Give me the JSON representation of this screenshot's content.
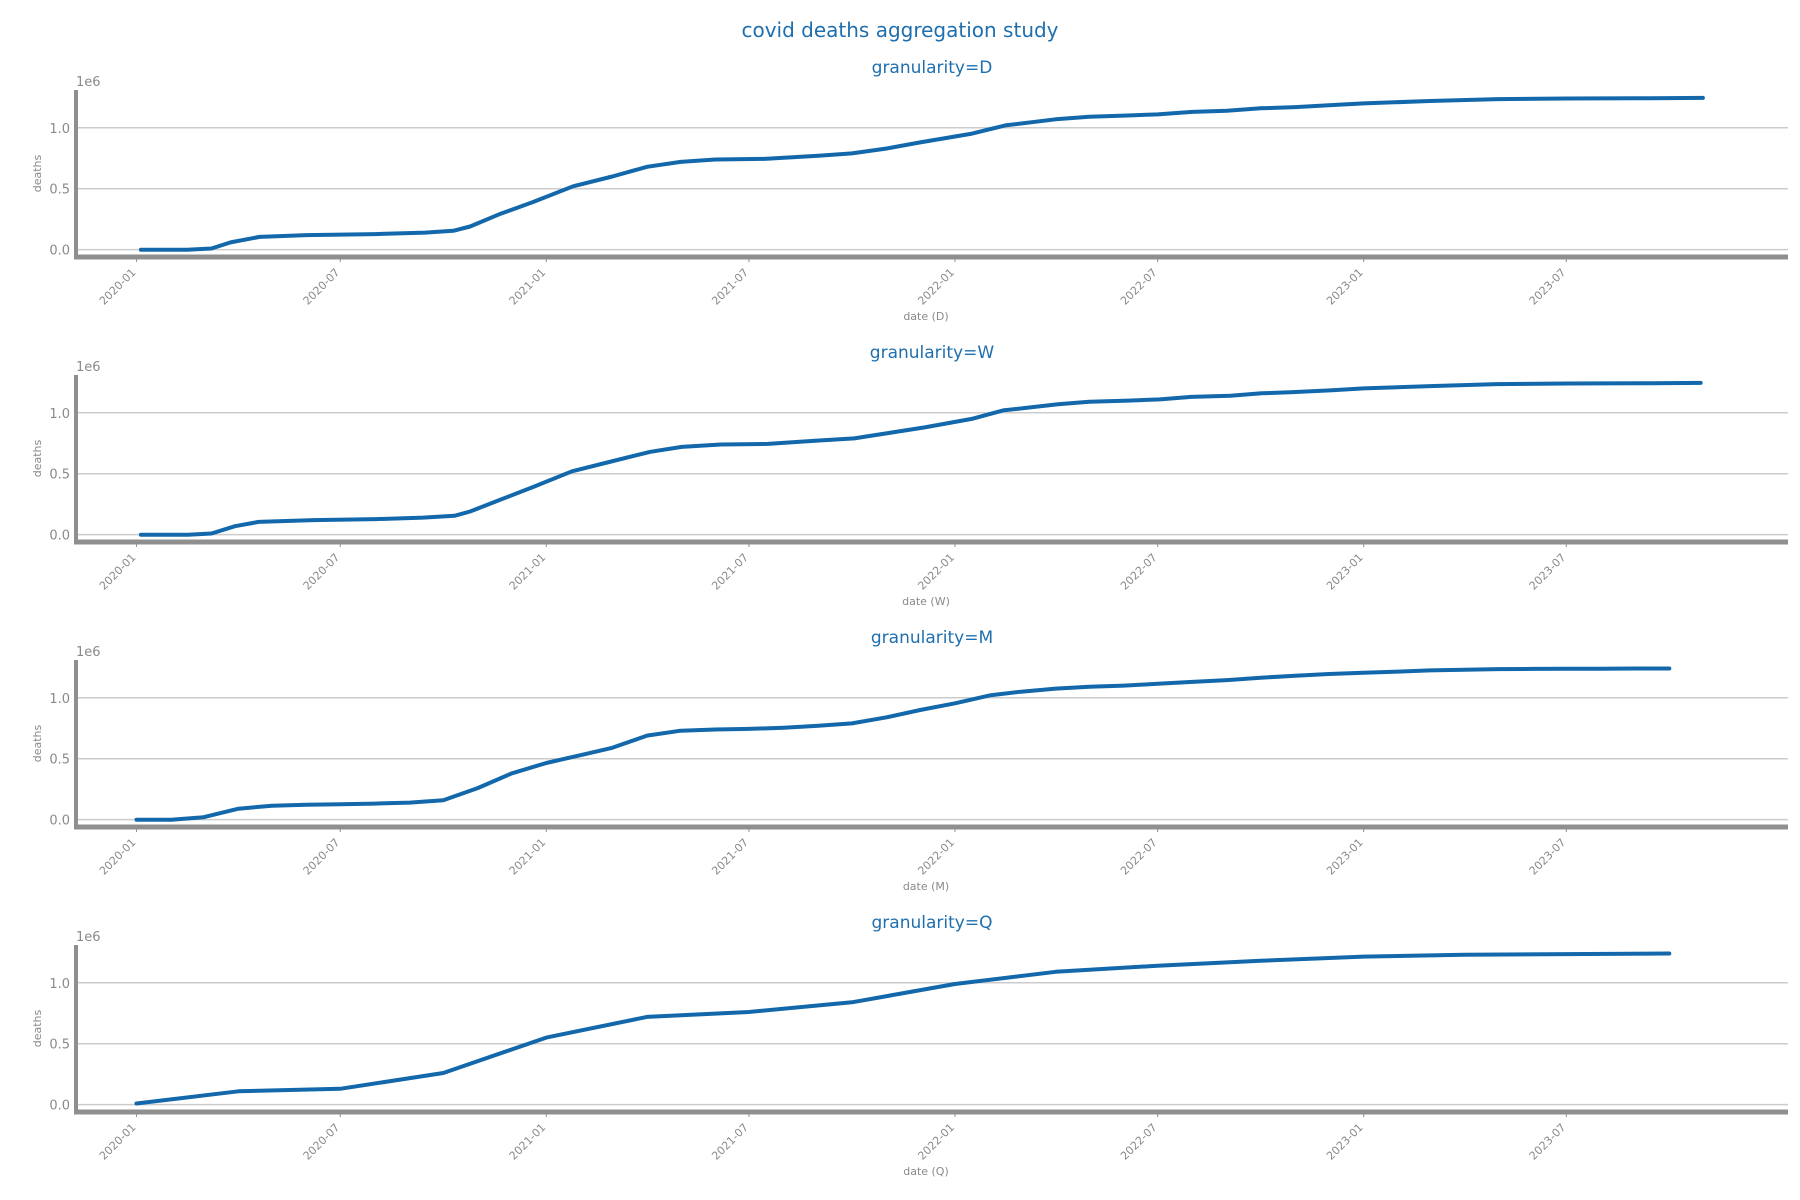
{
  "figure": {
    "title": "covid deaths aggregation study"
  },
  "chart_data": [
    {
      "type": "line",
      "title": "granularity=D",
      "xlabel": "date (D)",
      "ylabel": "deaths",
      "y_offset_label": "1e6",
      "ylim": [
        -0.06,
        1.31
      ],
      "xlim": [
        "2019-11-08",
        "2024-01-15"
      ],
      "grid": "horizontal",
      "yticks": [
        0.0,
        0.5,
        1.0
      ],
      "yticklabels": [
        "0.0",
        "0.5",
        "1.0"
      ],
      "xticks": [
        "2020-01-01",
        "2020-07-01",
        "2021-01-01",
        "2021-07-01",
        "2022-01-01",
        "2022-07-01",
        "2023-01-01",
        "2023-07-01"
      ],
      "xticklabels": [
        "2020-01",
        "2020-07",
        "2021-01",
        "2021-07",
        "2022-01",
        "2022-07",
        "2023-01",
        "2023-07"
      ],
      "color": "#1268aa",
      "series": [
        {
          "x": [
            "2020-01-05",
            "2020-02-15",
            "2020-03-08",
            "2020-03-25",
            "2020-04-20",
            "2020-06-01",
            "2020-08-01",
            "2020-09-15",
            "2020-10-10",
            "2020-10-25",
            "2020-11-20",
            "2020-12-20",
            "2021-01-25",
            "2021-03-01",
            "2021-04-01",
            "2021-05-01",
            "2021-06-01",
            "2021-07-15",
            "2021-09-01",
            "2021-10-01",
            "2021-11-01",
            "2021-12-01",
            "2022-01-15",
            "2022-02-15",
            "2022-04-01",
            "2022-05-01",
            "2022-06-01",
            "2022-07-01",
            "2022-08-01",
            "2022-09-01",
            "2022-10-01",
            "2022-11-01",
            "2022-12-01",
            "2023-01-01",
            "2023-03-01",
            "2023-05-01",
            "2023-07-01",
            "2023-09-01",
            "2023-10-31"
          ],
          "y": [
            0.0,
            0.0,
            0.01,
            0.06,
            0.105,
            0.12,
            0.128,
            0.14,
            0.155,
            0.19,
            0.29,
            0.39,
            0.52,
            0.6,
            0.68,
            0.72,
            0.74,
            0.745,
            0.77,
            0.79,
            0.83,
            0.88,
            0.95,
            1.02,
            1.07,
            1.09,
            1.1,
            1.11,
            1.13,
            1.14,
            1.16,
            1.17,
            1.185,
            1.2,
            1.22,
            1.235,
            1.24,
            1.242,
            1.245
          ]
        }
      ]
    },
    {
      "type": "line",
      "title": "granularity=W",
      "xlabel": "date (W)",
      "ylabel": "deaths",
      "y_offset_label": "1e6",
      "ylim": [
        -0.06,
        1.31
      ],
      "xlim": [
        "2019-11-08",
        "2024-01-15"
      ],
      "grid": "horizontal",
      "yticks": [
        0.0,
        0.5,
        1.0
      ],
      "yticklabels": [
        "0.0",
        "0.5",
        "1.0"
      ],
      "xticks": [
        "2020-01-01",
        "2020-07-01",
        "2021-01-01",
        "2021-07-01",
        "2022-01-01",
        "2022-07-01",
        "2023-01-01",
        "2023-07-01"
      ],
      "xticklabels": [
        "2020-01",
        "2020-07",
        "2021-01",
        "2021-07",
        "2022-01",
        "2022-07",
        "2023-01",
        "2023-07"
      ],
      "color": "#1268aa",
      "series": [
        {
          "x": [
            "2020-01-05",
            "2020-02-16",
            "2020-03-08",
            "2020-03-29",
            "2020-04-19",
            "2020-06-07",
            "2020-08-02",
            "2020-09-13",
            "2020-10-11",
            "2020-10-25",
            "2020-11-22",
            "2020-12-20",
            "2021-01-24",
            "2021-02-28",
            "2021-04-04",
            "2021-05-02",
            "2021-06-06",
            "2021-07-18",
            "2021-08-29",
            "2021-10-03",
            "2021-10-31",
            "2021-12-05",
            "2022-01-16",
            "2022-02-13",
            "2022-04-03",
            "2022-05-01",
            "2022-06-05",
            "2022-07-03",
            "2022-07-31",
            "2022-09-04",
            "2022-10-02",
            "2022-10-30",
            "2022-12-04",
            "2023-01-01",
            "2023-03-05",
            "2023-04-30",
            "2023-07-02",
            "2023-09-03",
            "2023-10-29"
          ],
          "y": [
            0.0,
            0.0,
            0.01,
            0.07,
            0.105,
            0.12,
            0.128,
            0.14,
            0.155,
            0.19,
            0.29,
            0.39,
            0.52,
            0.6,
            0.68,
            0.72,
            0.74,
            0.745,
            0.77,
            0.79,
            0.83,
            0.88,
            0.95,
            1.02,
            1.07,
            1.09,
            1.1,
            1.11,
            1.13,
            1.14,
            1.16,
            1.17,
            1.185,
            1.2,
            1.22,
            1.235,
            1.24,
            1.242,
            1.245
          ]
        }
      ]
    },
    {
      "type": "line",
      "title": "granularity=M",
      "xlabel": "date (M)",
      "ylabel": "deaths",
      "y_offset_label": "1e6",
      "ylim": [
        -0.06,
        1.31
      ],
      "xlim": [
        "2019-11-08",
        "2024-01-15"
      ],
      "grid": "horizontal",
      "yticks": [
        0.0,
        0.5,
        1.0
      ],
      "yticklabels": [
        "0.0",
        "0.5",
        "1.0"
      ],
      "xticks": [
        "2020-01-01",
        "2020-07-01",
        "2021-01-01",
        "2021-07-01",
        "2022-01-01",
        "2022-07-01",
        "2023-01-01",
        "2023-07-01"
      ],
      "xticklabels": [
        "2020-01",
        "2020-07",
        "2021-01",
        "2021-07",
        "2022-01",
        "2022-07",
        "2023-01",
        "2023-07"
      ],
      "color": "#1268aa",
      "series": [
        {
          "x": [
            "2020-01-01",
            "2020-02-01",
            "2020-03-01",
            "2020-04-01",
            "2020-05-01",
            "2020-06-01",
            "2020-07-01",
            "2020-08-01",
            "2020-09-01",
            "2020-10-01",
            "2020-11-01",
            "2020-12-01",
            "2021-01-01",
            "2021-02-01",
            "2021-03-01",
            "2021-04-01",
            "2021-05-01",
            "2021-06-01",
            "2021-07-01",
            "2021-08-01",
            "2021-09-01",
            "2021-10-01",
            "2021-11-01",
            "2021-12-01",
            "2022-01-01",
            "2022-02-01",
            "2022-03-01",
            "2022-04-01",
            "2022-05-01",
            "2022-06-01",
            "2022-07-01",
            "2022-08-01",
            "2022-09-01",
            "2022-10-01",
            "2022-11-01",
            "2022-12-01",
            "2023-01-01",
            "2023-02-01",
            "2023-03-01",
            "2023-04-01",
            "2023-05-01",
            "2023-06-01",
            "2023-07-01",
            "2023-08-01",
            "2023-09-01",
            "2023-10-01"
          ],
          "y": [
            0.0,
            0.0,
            0.02,
            0.09,
            0.115,
            0.122,
            0.127,
            0.132,
            0.14,
            0.16,
            0.26,
            0.38,
            0.465,
            0.53,
            0.59,
            0.69,
            0.73,
            0.74,
            0.745,
            0.755,
            0.77,
            0.79,
            0.84,
            0.9,
            0.955,
            1.02,
            1.05,
            1.075,
            1.09,
            1.1,
            1.115,
            1.13,
            1.145,
            1.165,
            1.18,
            1.195,
            1.205,
            1.215,
            1.225,
            1.23,
            1.235,
            1.237,
            1.238,
            1.239,
            1.24,
            1.24
          ]
        }
      ]
    },
    {
      "type": "line",
      "title": "granularity=Q",
      "xlabel": "date (Q)",
      "ylabel": "deaths",
      "y_offset_label": "1e6",
      "ylim": [
        -0.06,
        1.31
      ],
      "xlim": [
        "2019-11-08",
        "2024-01-15"
      ],
      "grid": "horizontal",
      "yticks": [
        0.0,
        0.5,
        1.0
      ],
      "yticklabels": [
        "0.0",
        "0.5",
        "1.0"
      ],
      "xticks": [
        "2020-01-01",
        "2020-07-01",
        "2021-01-01",
        "2021-07-01",
        "2022-01-01",
        "2022-07-01",
        "2023-01-01",
        "2023-07-01"
      ],
      "xticklabels": [
        "2020-01",
        "2020-07",
        "2021-01",
        "2021-07",
        "2022-01",
        "2022-07",
        "2023-01",
        "2023-07"
      ],
      "color": "#1268aa",
      "series": [
        {
          "x": [
            "2020-01-01",
            "2020-04-01",
            "2020-07-01",
            "2020-10-01",
            "2021-01-01",
            "2021-04-01",
            "2021-07-01",
            "2021-10-01",
            "2022-01-01",
            "2022-04-01",
            "2022-07-01",
            "2022-10-01",
            "2023-01-01",
            "2023-04-01",
            "2023-07-01",
            "2023-10-01"
          ],
          "y": [
            0.01,
            0.11,
            0.13,
            0.26,
            0.55,
            0.72,
            0.76,
            0.84,
            0.99,
            1.09,
            1.14,
            1.18,
            1.215,
            1.23,
            1.235,
            1.24
          ]
        }
      ]
    }
  ]
}
